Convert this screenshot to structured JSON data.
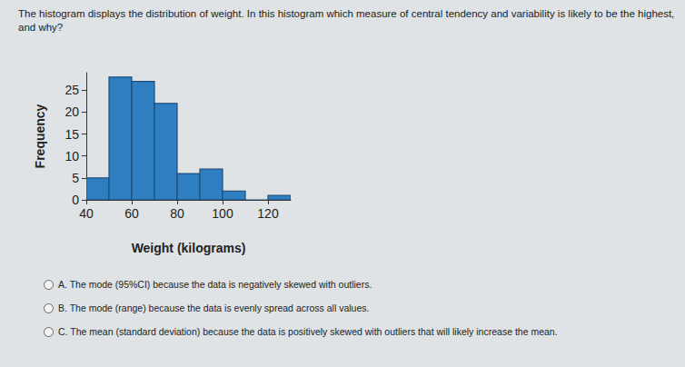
{
  "question": "The histogram displays the distribution of weight. In this histogram which measure of central tendency and variability is likely to be the highest, and why?",
  "chart_data": {
    "type": "histogram",
    "bins": [
      40,
      50,
      60,
      70,
      80,
      90,
      100,
      110,
      120,
      130
    ],
    "counts": [
      5,
      28,
      27,
      22,
      6,
      7,
      2,
      0,
      1
    ],
    "color": "#2f7ec2",
    "xlabel": "Weight (kilograms)",
    "ylabel": "Frequency",
    "xlim": [
      40,
      130
    ],
    "xticks": [
      40,
      60,
      80,
      100,
      120
    ],
    "ylim": [
      0,
      29
    ],
    "yticks": [
      0,
      5,
      10,
      15,
      20,
      25
    ],
    "grid": false
  },
  "options": [
    {
      "label": "A.",
      "text": "The mode (95%CI) because the data is negatively skewed with outliers."
    },
    {
      "label": "B.",
      "text": "The mode (range) because the data is evenly spread across all values."
    },
    {
      "label": "C.",
      "text": "The mean (standard deviation) because the data is positively skewed with outliers that will likely increase the mean."
    }
  ]
}
